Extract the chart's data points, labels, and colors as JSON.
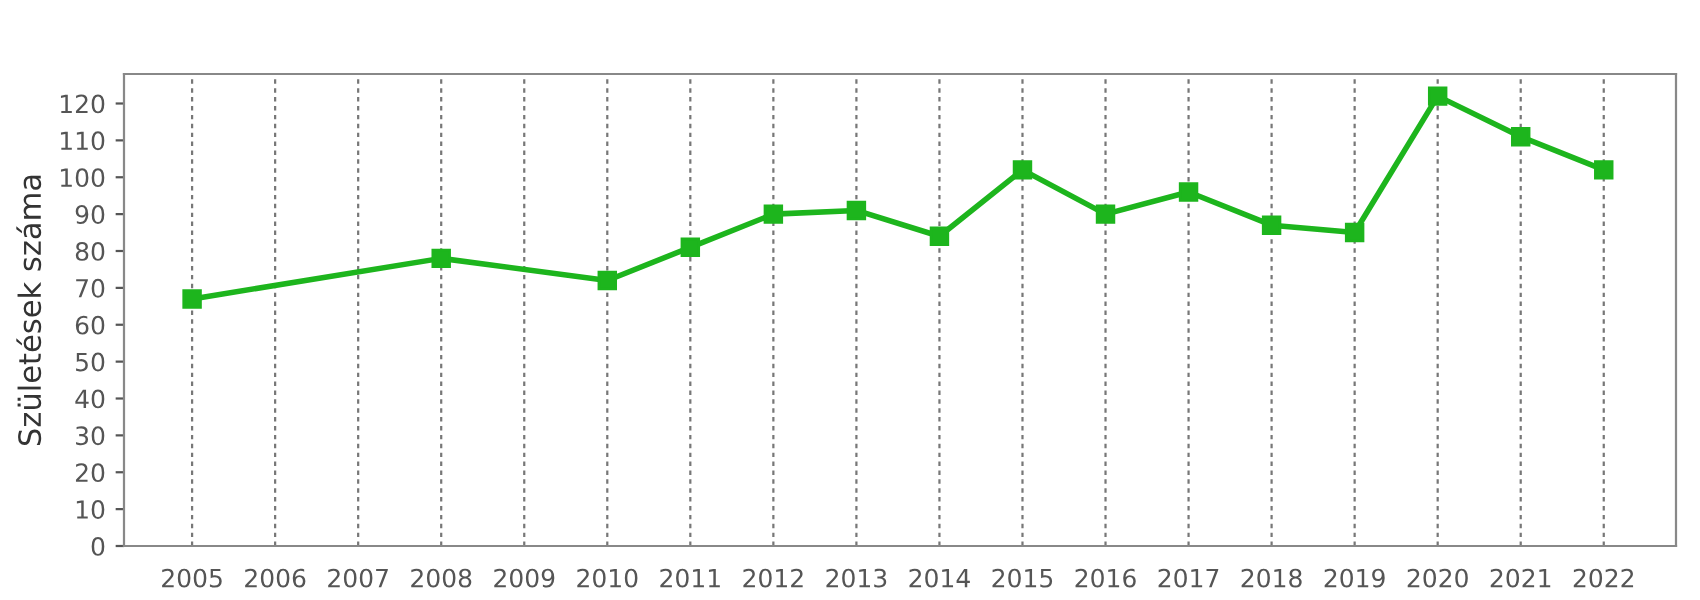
{
  "chart_data": {
    "type": "line",
    "ylabel": "Születések száma",
    "x": [
      2005,
      2008,
      2010,
      2011,
      2012,
      2013,
      2014,
      2015,
      2016,
      2017,
      2018,
      2019,
      2020,
      2021,
      2022
    ],
    "series": [
      {
        "color": "#1db51d",
        "values": [
          67,
          78,
          72,
          81,
          90,
          91,
          84,
          102,
          90,
          96,
          87,
          85,
          122,
          111,
          102
        ]
      }
    ],
    "xlim": [
      2004.18,
      2022.87
    ],
    "xticks": [
      2005,
      2006,
      2007,
      2008,
      2009,
      2010,
      2011,
      2012,
      2013,
      2014,
      2015,
      2016,
      2017,
      2018,
      2019,
      2020,
      2021,
      2022
    ],
    "ylim": [
      0,
      128
    ],
    "yticks": [
      0,
      10,
      20,
      30,
      40,
      50,
      60,
      70,
      80,
      90,
      100,
      110,
      120
    ],
    "grid": "x",
    "marker": "square",
    "line_style": "solid",
    "legend": false
  }
}
